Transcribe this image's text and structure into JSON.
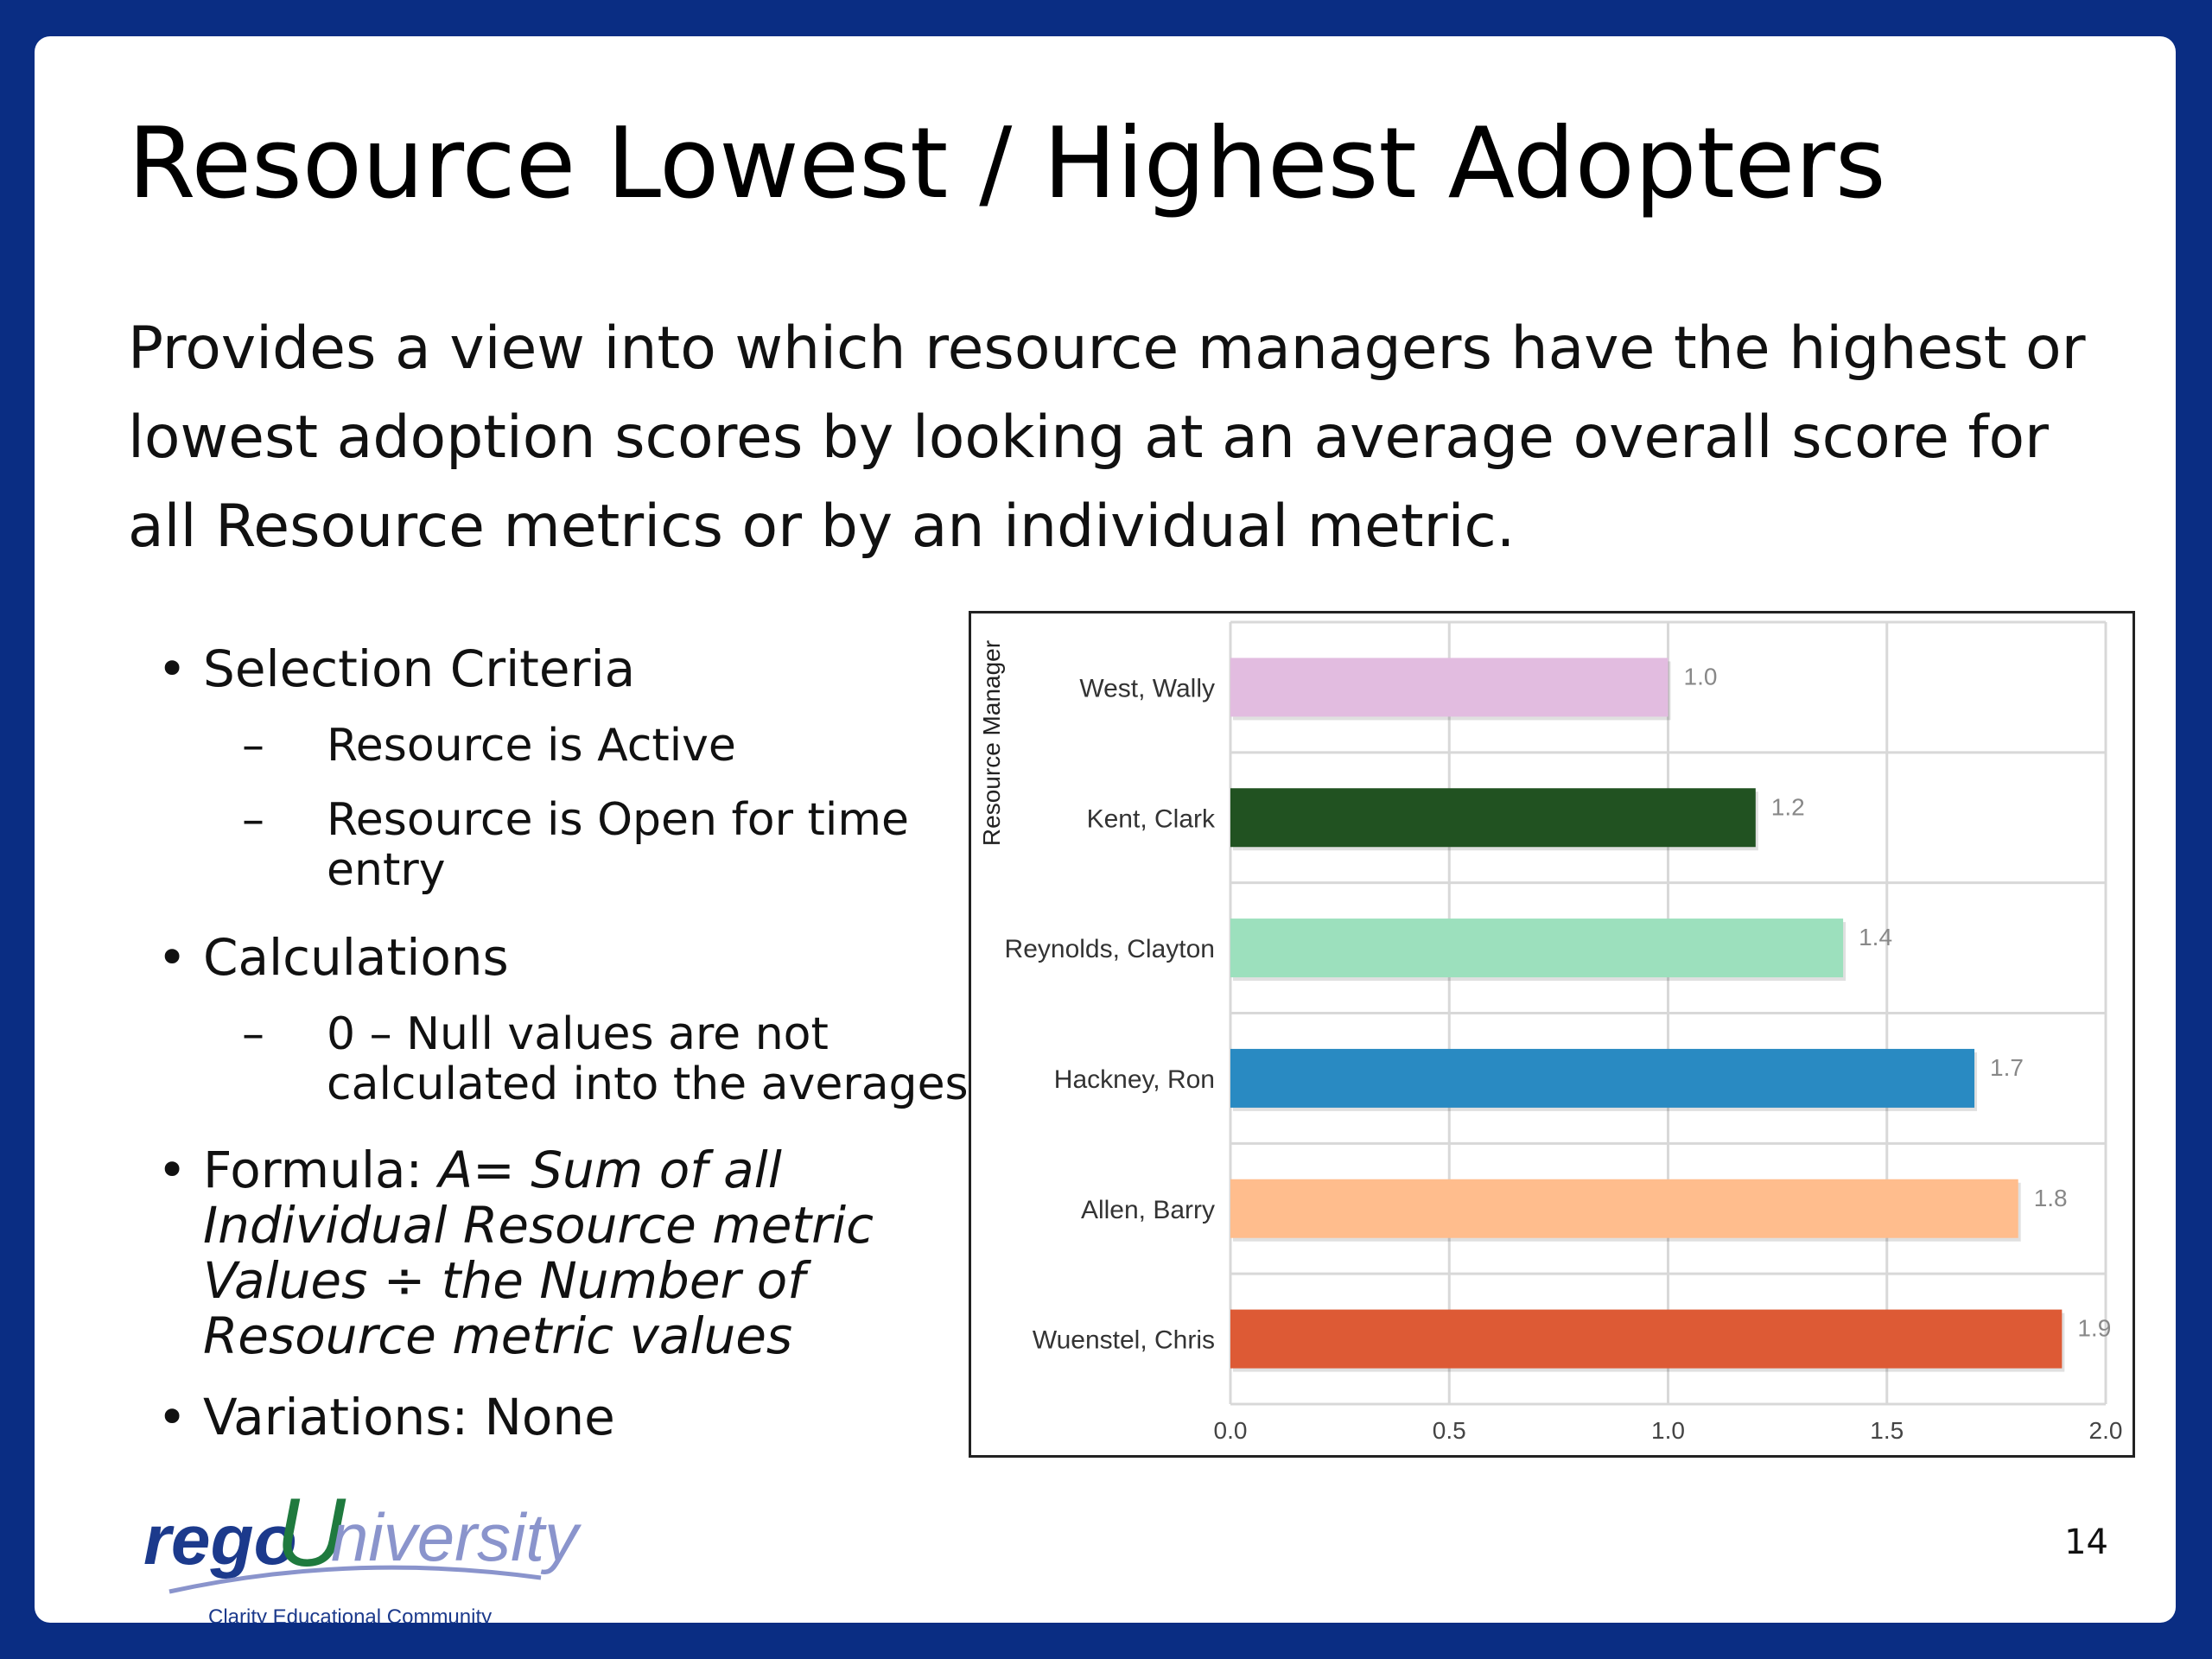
{
  "slide": {
    "title": "Resource Lowest / Highest Adopters",
    "intro": "Provides a view into which resource managers have the highest or lowest adoption scores by looking at an average overall score for all Resource metrics or by an individual metric.",
    "bullets": {
      "selection_criteria": "Selection Criteria",
      "resource_active": "Resource is Active",
      "resource_open": "Resource is Open for time entry",
      "calculations": "Calculations",
      "null_values": "0 – Null values are not calculated into the averages",
      "formula_prefix": "Formula: ",
      "formula_text": "A= Sum of all Individual Resource metric Values ÷ the Number of Resource metric values",
      "variations": "Variations: None"
    },
    "page_number": "14"
  },
  "logo": {
    "rego": "rego",
    "u": "U",
    "niversity": "niversity",
    "tagline": "Clarity Educational Community"
  },
  "chart_data": {
    "type": "bar",
    "orientation": "horizontal",
    "ylabel": "Resource Manager",
    "xlabel": "",
    "categories": [
      "West, Wally",
      "Kent, Clark",
      "Reynolds, Clayton",
      "Hackney, Ron",
      "Allen, Barry",
      "Wuenstel, Chris"
    ],
    "values": [
      1.0,
      1.2,
      1.4,
      1.7,
      1.8,
      1.9
    ],
    "labels": [
      "1.0",
      "1.2",
      "1.4",
      "1.7",
      "1.8",
      "1.9"
    ],
    "colors": [
      "#e2bce0",
      "#215221",
      "#9ce0bd",
      "#298ac2",
      "#ffbd8d",
      "#dd5a35"
    ],
    "xlim": [
      0,
      2
    ],
    "ticks": [
      0,
      0.5,
      1,
      1.5,
      2
    ],
    "tick_labels": [
      "0.0",
      "0.5",
      "1.0",
      "1.5",
      "2.0"
    ],
    "grid": true
  }
}
